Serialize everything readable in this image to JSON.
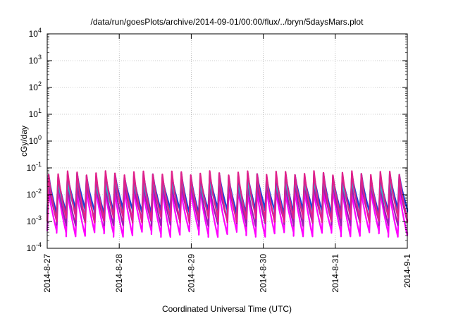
{
  "chart_data": {
    "type": "line",
    "title": "/data/run/goesPlots/archive/2014-09-01/00:00/flux/../bryn/5daysMars.plot",
    "xlabel": "Coordinated Universal Time (UTC)",
    "ylabel": "cGy/day",
    "x_ticks": [
      "2014-8-27",
      "2014-8-28",
      "2014-8-29",
      "2014-8-30",
      "2014-8-31",
      "2014-9-1"
    ],
    "y_ticks": [
      {
        "base": "10",
        "exp": "-4"
      },
      {
        "base": "10",
        "exp": "-3"
      },
      {
        "base": "10",
        "exp": "-2"
      },
      {
        "base": "10",
        "exp": "-1"
      },
      {
        "base": "10",
        "exp": "0"
      },
      {
        "base": "10",
        "exp": "1"
      },
      {
        "base": "10",
        "exp": "2"
      },
      {
        "base": "10",
        "exp": "3"
      },
      {
        "base": "10",
        "exp": "4"
      }
    ],
    "xlim": [
      "2014-08-27",
      "2014-09-01"
    ],
    "ylim": [
      0.0001,
      10000
    ],
    "yscale": "log",
    "grid": true,
    "pattern": {
      "description_note": "",
      "cycles_per_day": 7.6,
      "series": [
        {
          "color": "#e0218a",
          "peak": 0.065,
          "trough": 0.0012
        },
        {
          "color": "#1f3fd8",
          "peak": 0.055,
          "trough": 0.0025
        },
        {
          "color": "#2bb5c9",
          "peak": 0.035,
          "trough": 0.0022
        },
        {
          "color": "#9a1fb0",
          "peak": 0.025,
          "trough": 0.0009
        },
        {
          "color": "#ff00ff",
          "peak": 0.015,
          "trough": 0.00035
        }
      ]
    }
  }
}
